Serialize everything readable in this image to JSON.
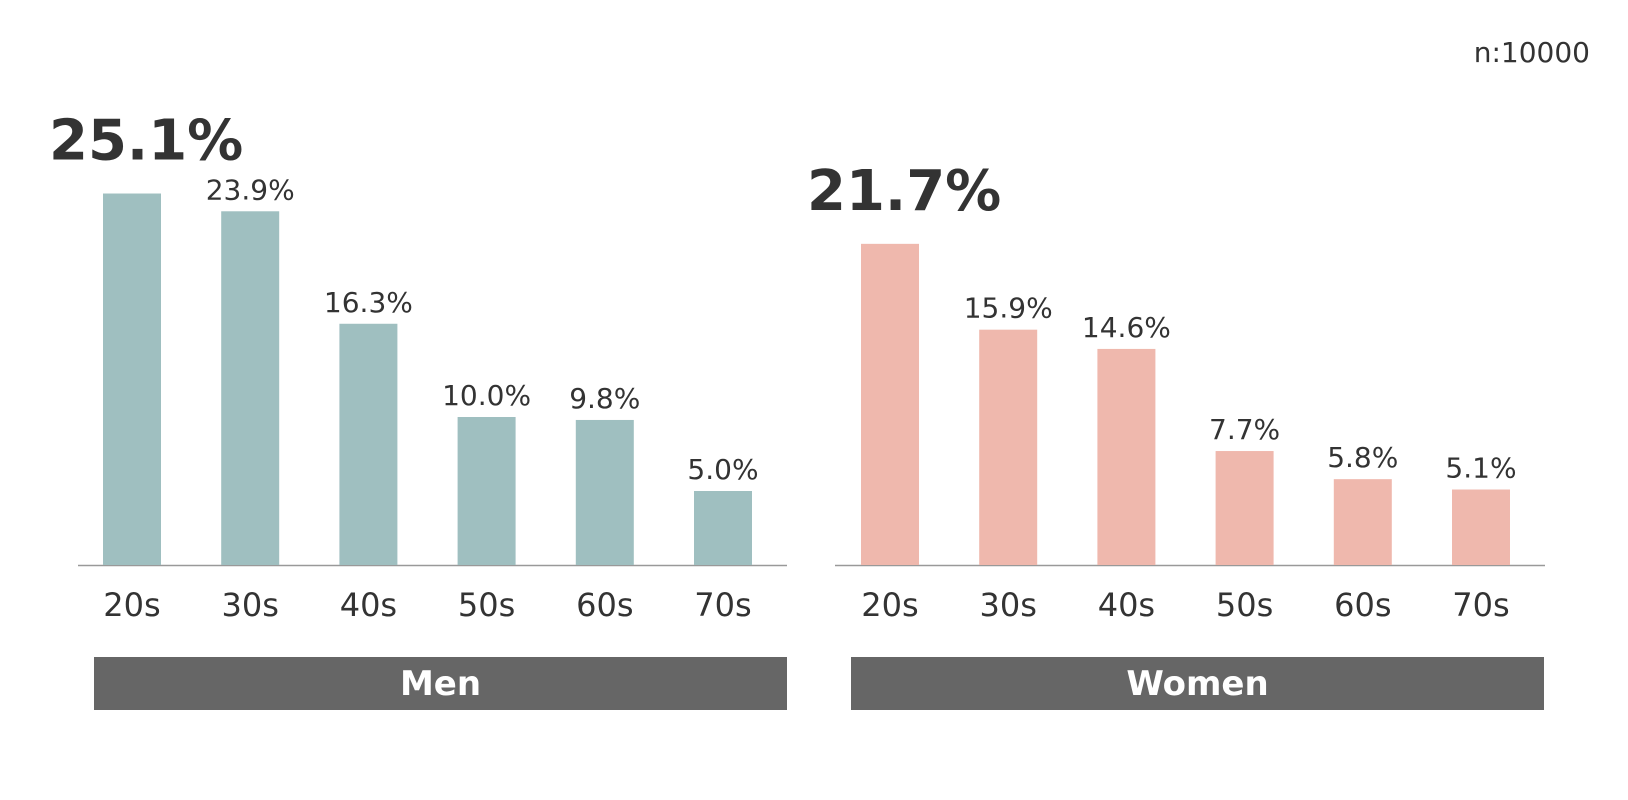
{
  "sample_note": "n:10000",
  "chart_data": [
    {
      "type": "bar",
      "group": "Men",
      "categories": [
        "20s",
        "30s",
        "40s",
        "50s",
        "60s",
        "70s"
      ],
      "values": [
        25.1,
        23.9,
        16.3,
        10.0,
        9.8,
        5.0
      ],
      "value_labels": [
        "25.1%",
        "23.9%",
        "16.3%",
        "10.0%",
        "9.8%",
        "5.0%"
      ],
      "ylim": [
        0,
        26
      ],
      "color": "#9fbfc0"
    },
    {
      "type": "bar",
      "group": "Women",
      "categories": [
        "20s",
        "30s",
        "40s",
        "50s",
        "60s",
        "70s"
      ],
      "values": [
        21.7,
        15.9,
        14.6,
        7.7,
        5.8,
        5.1
      ],
      "value_labels": [
        "21.7%",
        "15.9%",
        "14.6%",
        "7.7%",
        "5.8%",
        "5.1%"
      ],
      "ylim": [
        0,
        26
      ],
      "color": "#efb8ad"
    }
  ],
  "colors": {
    "axis": "#999999",
    "text": "#333333",
    "group_bar": "#666666",
    "group_text": "#ffffff"
  }
}
